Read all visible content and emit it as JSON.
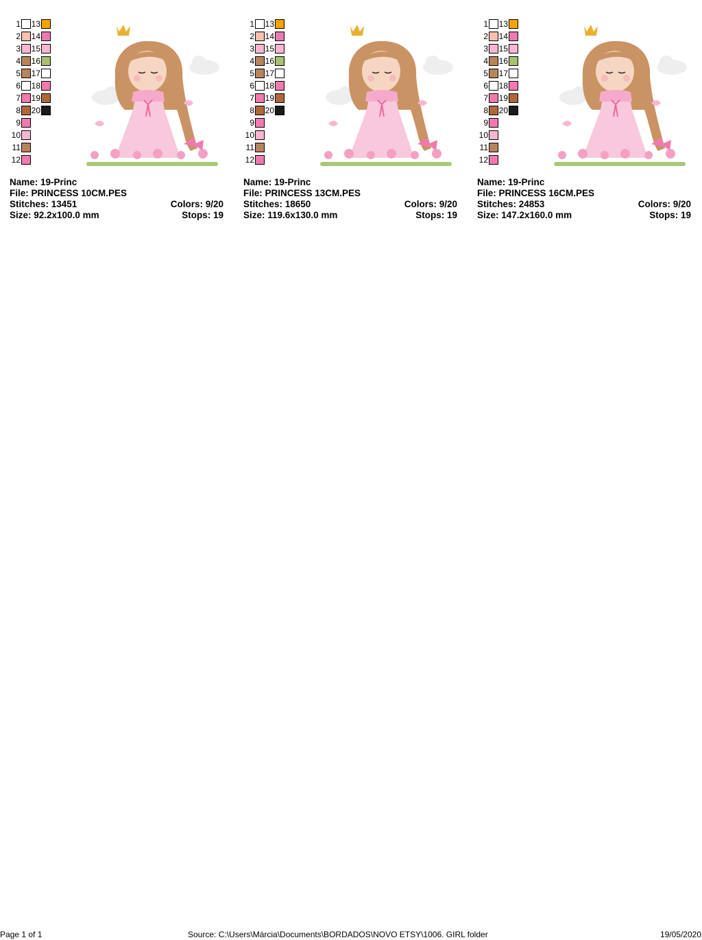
{
  "swatch_colors": {
    "1": "#ffffff",
    "2": "#f5c0ae",
    "3": "#f8b6d2",
    "4": "#b8845e",
    "5": "#b8845e",
    "6": "#ffffff",
    "7": "#f07ab0",
    "8": "#b0683a",
    "9": "#f07ab0",
    "10": "#f8b6d2",
    "11": "#b8845e",
    "12": "#f07ab0",
    "13": "#f5a300",
    "14": "#e87ab0",
    "15": "#f8b6d2",
    "16": "#a8c070",
    "17": "#ffffff",
    "18": "#f07ab0",
    "19": "#b0683a",
    "20": "#1a1a1a"
  },
  "designs": [
    {
      "name": "Name: 19-Princ",
      "file": "File: PRINCESS 10CM.PES",
      "stitches": "Stitches: 13451",
      "colors": "Colors: 9/20",
      "size": "Size: 92.2x100.0 mm",
      "stops": "Stops: 19"
    },
    {
      "name": "Name: 19-Princ",
      "file": "File: PRINCESS 13CM.PES",
      "stitches": "Stitches: 18650",
      "colors": "Colors: 9/20",
      "size": "Size: 119.6x130.0 mm",
      "stops": "Stops: 19"
    },
    {
      "name": "Name: 19-Princ",
      "file": "File: PRINCESS 16CM.PES",
      "stitches": "Stitches: 24853",
      "colors": "Colors: 9/20",
      "size": "Size: 147.2x160.0 mm",
      "stops": "Stops: 19"
    }
  ],
  "footer": {
    "page": "Page 1 of 1",
    "source": "Source: C:\\Users\\Márcia\\Documents\\BORDADOS\\NOVO ETSY\\1006. GIRL folder",
    "date": "19/05/2020"
  }
}
